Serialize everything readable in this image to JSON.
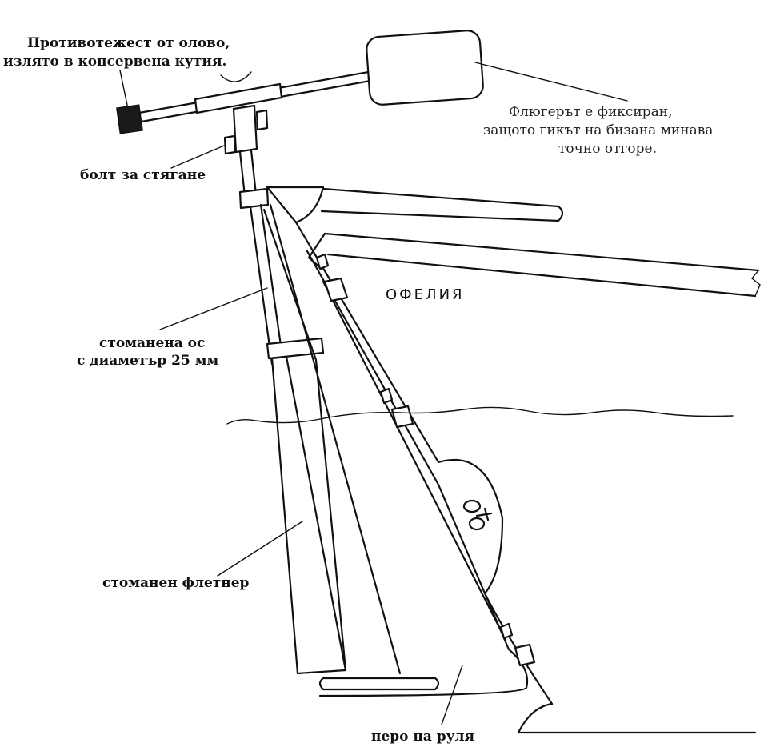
{
  "labels": {
    "counterweight_line1": "Противотежест от олово,",
    "counterweight_line2": "излято в консервена кутия.",
    "vane_line1": "Флюгерът е фиксиран,",
    "vane_line2": "защото гикът на бизана минава",
    "vane_line3": "точно отгоре.",
    "clamp_bolt": "болт за стягане",
    "boat_name": "ОФЕЛИЯ",
    "shaft_line1": "стоманена ос",
    "shaft_line2": "с диаметър 25 мм",
    "trim_tab": "стоманен флетнер",
    "rudder_blade": "перо на руля"
  }
}
